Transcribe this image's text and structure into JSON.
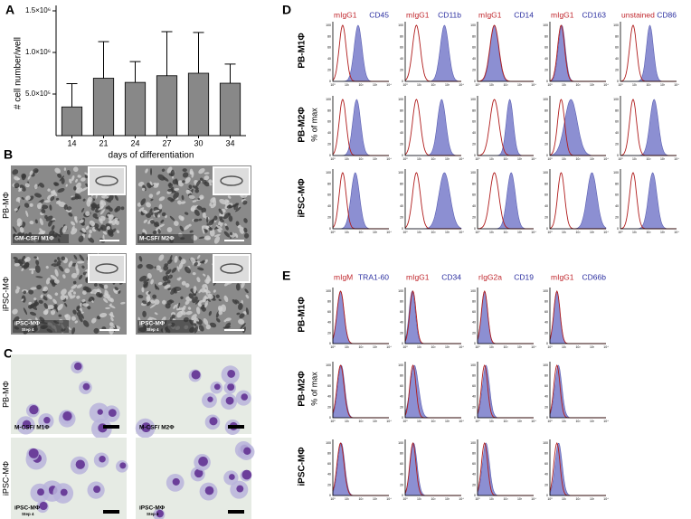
{
  "chart_data": {
    "type": "bar",
    "y_axis_label": "# cell number/well",
    "x_axis_label": "days of differentiation",
    "categories": [
      "14",
      "21",
      "24",
      "27",
      "30",
      "34"
    ],
    "values": [
      345000,
      690000,
      640000,
      720000,
      750000,
      630000
    ],
    "errors": [
      280000,
      440000,
      250000,
      530000,
      490000,
      230000
    ],
    "color": "#888888",
    "ylim": [
      0,
      1500000
    ],
    "yticks": [
      {
        "value": 500000,
        "label": "5.0×10⁵"
      },
      {
        "value": 1000000,
        "label": "1.0×10⁶"
      },
      {
        "value": 1500000,
        "label": "1.5×10⁶"
      }
    ]
  },
  "panel_labels": [
    "A",
    "B",
    "C",
    "D",
    "E"
  ],
  "panel_b": {
    "row_labels": [
      "PB-MΦ",
      "iPSC-MΦ"
    ],
    "captions": [
      "GM-CSF/ M1Φ",
      "M-CSF/ M2Φ",
      "iPSC-MΦ",
      "iPSC-MΦ"
    ],
    "sub_captions": [
      "Step 4",
      "Step 4"
    ]
  },
  "panel_c": {
    "row_labels": [
      "PB-MΦ",
      "iPSC-MΦ"
    ],
    "captions": [
      "M-CSF/ M1Φ",
      "M-CSF/ M2Φ",
      "iPSC-MΦ",
      "iPSC-MΦ"
    ],
    "sub_captions": [
      "Step 4",
      "Step 4"
    ]
  },
  "hist_yticks": [
    "0",
    "20",
    "40",
    "60",
    "80",
    "100"
  ],
  "hist_xticks": [
    "10⁰",
    "10¹",
    "10²",
    "10³",
    "10⁴"
  ],
  "panel_d": {
    "row_labels": [
      "PB-M1Φ",
      "PB-M2Φ",
      "iPSC-MΦ"
    ],
    "y_axis_label": "% of max",
    "columns": [
      {
        "isotype": "mIgG1",
        "marker": "CD45"
      },
      {
        "isotype": "mIgG1",
        "marker": "CD11b"
      },
      {
        "isotype": "mIgG1",
        "marker": "CD14"
      },
      {
        "isotype": "mIgG1",
        "marker": "CD163"
      },
      {
        "isotype": "unstained",
        "marker": "CD86"
      }
    ]
  },
  "panel_e": {
    "row_labels": [
      "PB-M1Φ",
      "PB-M2Φ",
      "iPSC-MΦ"
    ],
    "y_axis_label": "% of max",
    "columns": [
      {
        "isotype": "mIgM",
        "marker": "TRA1-60"
      },
      {
        "isotype": "mIgG1",
        "marker": "CD34"
      },
      {
        "isotype": "rIgG2a",
        "marker": "CD19"
      },
      {
        "isotype": "mIgG1",
        "marker": "CD66b"
      }
    ]
  }
}
